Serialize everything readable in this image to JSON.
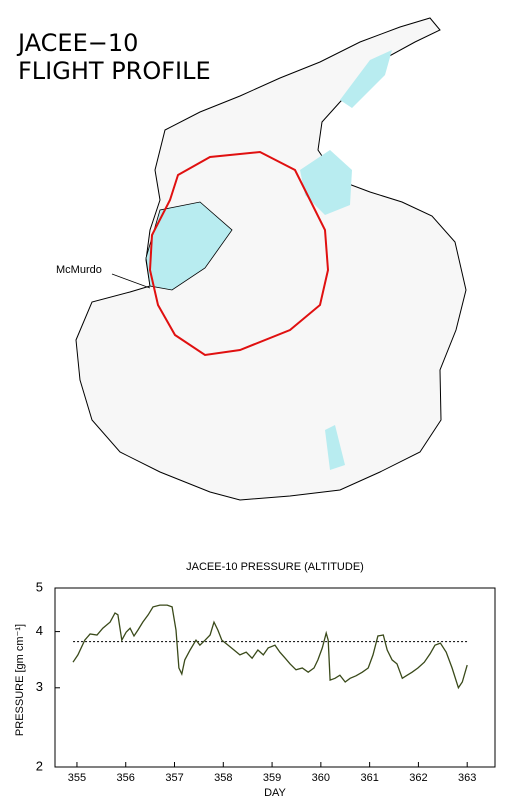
{
  "map": {
    "title_lines": [
      "JACEE−10",
      "FLIGHT PROFILE"
    ],
    "site_label": "McMurdo"
  },
  "chart_data": {
    "type": "line",
    "title": "JACEE-10 PRESSURE (ALTITUDE)",
    "x_label": "DAY",
    "y_label": "PRESSURE [gm cm⁻¹]",
    "yscale": "log",
    "xlim": [
      354.55,
      363.57
    ],
    "ylim": [
      2,
      5
    ],
    "xticks": [
      355,
      356,
      357,
      358,
      359,
      360,
      361,
      362,
      363
    ],
    "yticks": [
      2,
      3,
      4,
      5
    ],
    "reference_line": 3.8,
    "series": [
      {
        "color": "#3a4a1a",
        "x": [
          354.92,
          355.02,
          355.16,
          355.27,
          355.41,
          355.53,
          355.68,
          355.78,
          355.84,
          355.92,
          356.01,
          356.09,
          356.17,
          356.25,
          356.35,
          356.46,
          356.56,
          356.7,
          356.85,
          356.95,
          357.03,
          357.09,
          357.15,
          357.21,
          357.32,
          357.44,
          357.52,
          357.63,
          357.73,
          357.81,
          357.89,
          357.97,
          358.1,
          358.22,
          358.34,
          358.47,
          358.59,
          358.71,
          358.82,
          358.92,
          359.06,
          359.16,
          359.27,
          359.37,
          359.49,
          359.62,
          359.74,
          359.86,
          359.94,
          360.03,
          360.11,
          360.15,
          360.19,
          360.29,
          360.39,
          360.5,
          360.6,
          360.72,
          360.85,
          360.97,
          361.07,
          361.17,
          361.28,
          361.36,
          361.46,
          361.56,
          361.67,
          361.75,
          361.87,
          361.99,
          362.12,
          362.24,
          362.34,
          362.45,
          362.57,
          362.69,
          362.82,
          362.9,
          363.0
        ],
        "values": [
          3.42,
          3.55,
          3.83,
          3.95,
          3.93,
          4.07,
          4.2,
          4.4,
          4.36,
          3.83,
          3.99,
          4.07,
          3.91,
          4.03,
          4.2,
          4.36,
          4.54,
          4.58,
          4.58,
          4.54,
          4.03,
          3.32,
          3.22,
          3.46,
          3.64,
          3.83,
          3.73,
          3.83,
          3.93,
          4.2,
          4.03,
          3.83,
          3.73,
          3.64,
          3.55,
          3.6,
          3.49,
          3.64,
          3.55,
          3.68,
          3.73,
          3.6,
          3.49,
          3.39,
          3.29,
          3.32,
          3.25,
          3.32,
          3.46,
          3.68,
          3.97,
          3.83,
          3.12,
          3.15,
          3.2,
          3.09,
          3.15,
          3.19,
          3.25,
          3.32,
          3.55,
          3.91,
          3.93,
          3.64,
          3.46,
          3.39,
          3.15,
          3.19,
          3.25,
          3.32,
          3.42,
          3.57,
          3.73,
          3.77,
          3.6,
          3.32,
          3.0,
          3.09,
          3.37
        ]
      }
    ]
  }
}
